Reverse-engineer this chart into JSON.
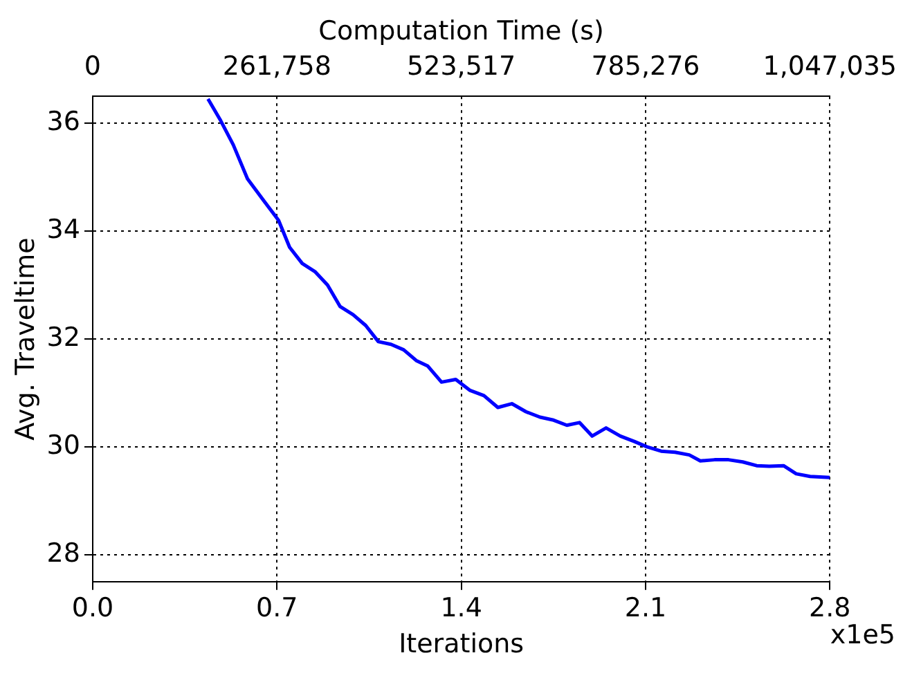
{
  "chart_data": {
    "type": "line",
    "xlabel": "Iterations",
    "ylabel": "Avg. Traveltime",
    "x2label": "Computation Time (s)",
    "annotations": [
      "x1e5"
    ],
    "x": [
      0.438,
      0.486,
      0.534,
      0.588,
      0.652,
      0.706,
      0.748,
      0.796,
      0.844,
      0.892,
      0.94,
      0.989,
      1.037,
      1.085,
      1.133,
      1.181,
      1.229,
      1.272,
      1.325,
      1.379,
      1.432,
      1.486,
      1.539,
      1.592,
      1.646,
      1.699,
      1.747,
      1.801,
      1.849,
      1.897,
      1.95,
      2.004,
      2.057,
      2.105,
      2.159,
      2.212,
      2.266,
      2.308,
      2.362,
      2.415,
      2.469,
      2.522,
      2.57,
      2.624,
      2.672,
      2.725,
      2.8
    ],
    "series": [
      {
        "color": "#0000ff",
        "values": [
          36.45,
          36.05,
          35.6,
          34.97,
          34.55,
          34.2,
          33.7,
          33.4,
          33.25,
          33.0,
          32.6,
          32.45,
          32.25,
          31.95,
          31.9,
          31.8,
          31.6,
          31.5,
          31.2,
          31.25,
          31.05,
          30.95,
          30.73,
          30.8,
          30.65,
          30.55,
          30.5,
          30.4,
          30.45,
          30.2,
          30.35,
          30.2,
          30.1,
          30.0,
          29.92,
          29.9,
          29.85,
          29.74,
          29.76,
          29.76,
          29.72,
          29.65,
          29.64,
          29.65,
          29.5,
          29.45,
          29.43
        ]
      }
    ],
    "xlim": [
      0,
      2.8
    ],
    "xticks": [
      {
        "value": 0,
        "label": "0.0"
      },
      0.7,
      1.4,
      2.1,
      2.8
    ],
    "x2lim": [
      0,
      1047035
    ],
    "x2ticks": [
      0,
      {
        "value": 261758,
        "label": "261,758"
      },
      {
        "value": 523517,
        "label": "523,517"
      },
      {
        "value": 785276,
        "label": "785,276"
      },
      {
        "value": 1047035,
        "label": "1,047,035"
      }
    ],
    "ylim": [
      27.5,
      36.5
    ],
    "yticks": [
      28,
      30,
      32,
      34,
      36
    ],
    "grid": true,
    "legend": false,
    "marker": "none",
    "line_style": "solid"
  }
}
